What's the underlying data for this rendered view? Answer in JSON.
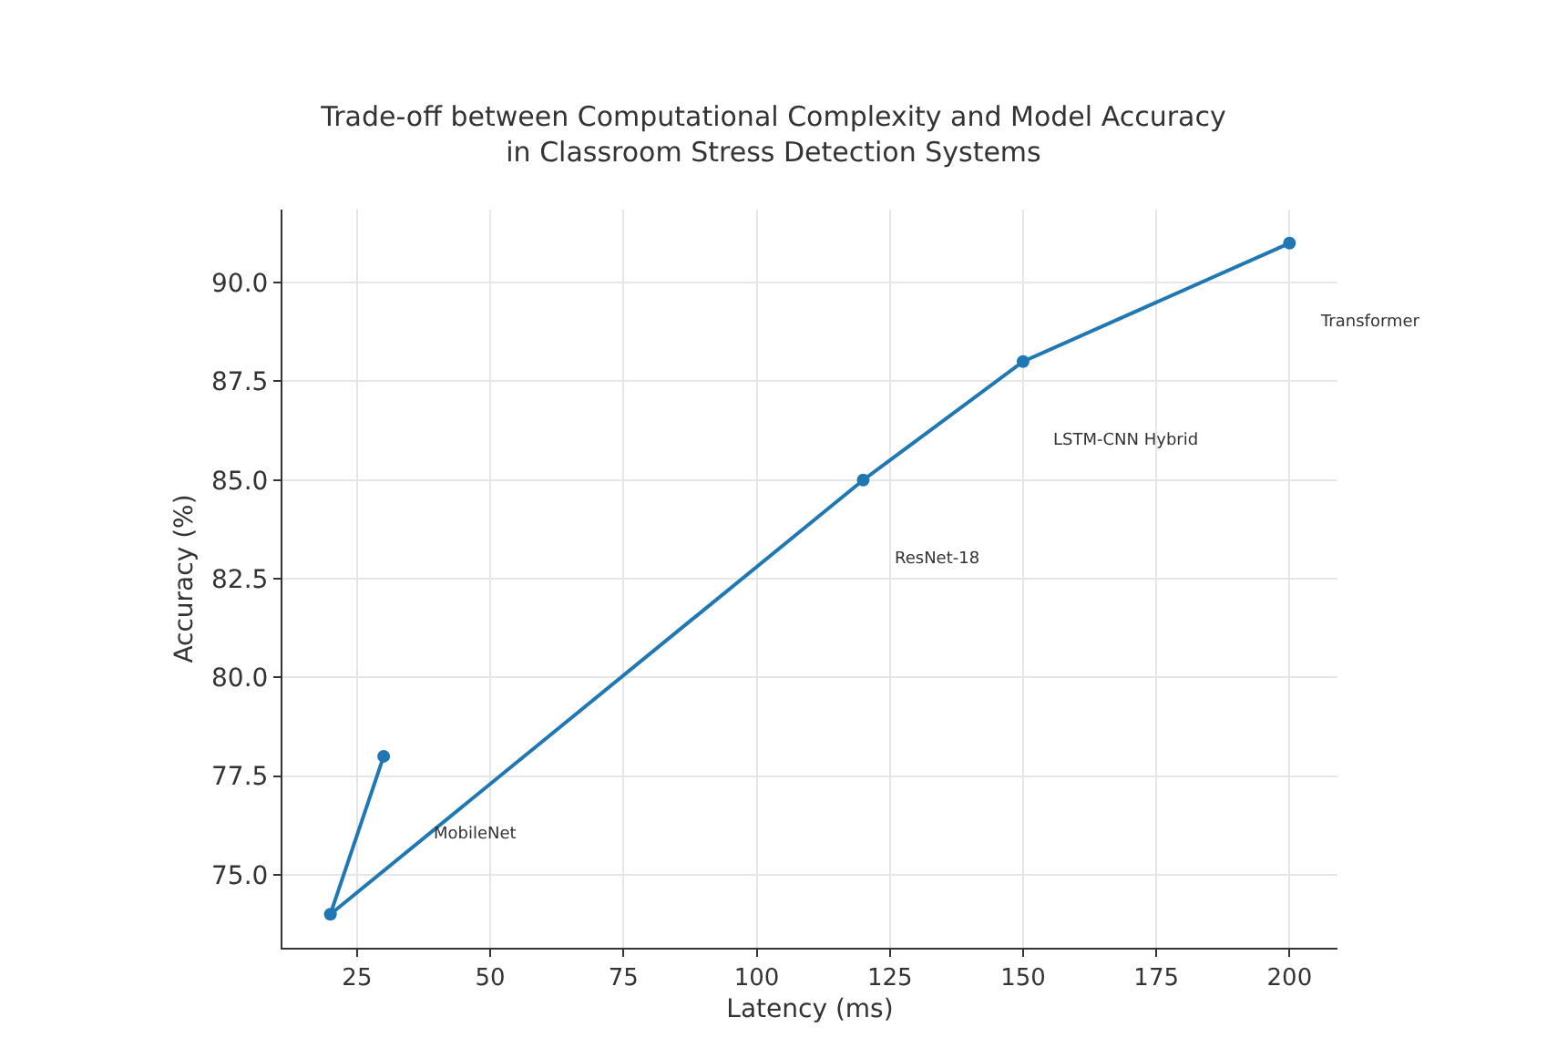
{
  "chart_data": {
    "type": "line",
    "title": "Trade-off between Computational Complexity and Model Accuracy\nin Classroom Stress Detection Systems",
    "xlabel": "Latency (ms)",
    "ylabel": "Accuracy (%)",
    "x": [
      30,
      20,
      120,
      150,
      200
    ],
    "series": [
      {
        "color": "#1f77b4",
        "values": [
          78,
          74,
          85,
          88,
          91
        ]
      }
    ],
    "annotations": [
      "MobileNet",
      "ResNet-18",
      "LSTM-CNN Hybrid",
      "Transformer"
    ],
    "xlim": [
      11,
      209
    ],
    "xticks": [
      25,
      50,
      75,
      100,
      125,
      150,
      175,
      200
    ],
    "ylim": [
      73.15,
      91.85
    ],
    "yticks": [
      {
        "value": 75,
        "label": "75.0"
      },
      {
        "value": 77.5,
        "label": "77.5"
      },
      {
        "value": 80,
        "label": "80.0"
      },
      {
        "value": 82.5,
        "label": "82.5"
      },
      {
        "value": 85,
        "label": "85.0"
      },
      {
        "value": 87.5,
        "label": "87.5"
      },
      {
        "value": 90,
        "label": "90.0"
      }
    ],
    "grid": true,
    "marker": "circle",
    "line_style": "solid"
  }
}
